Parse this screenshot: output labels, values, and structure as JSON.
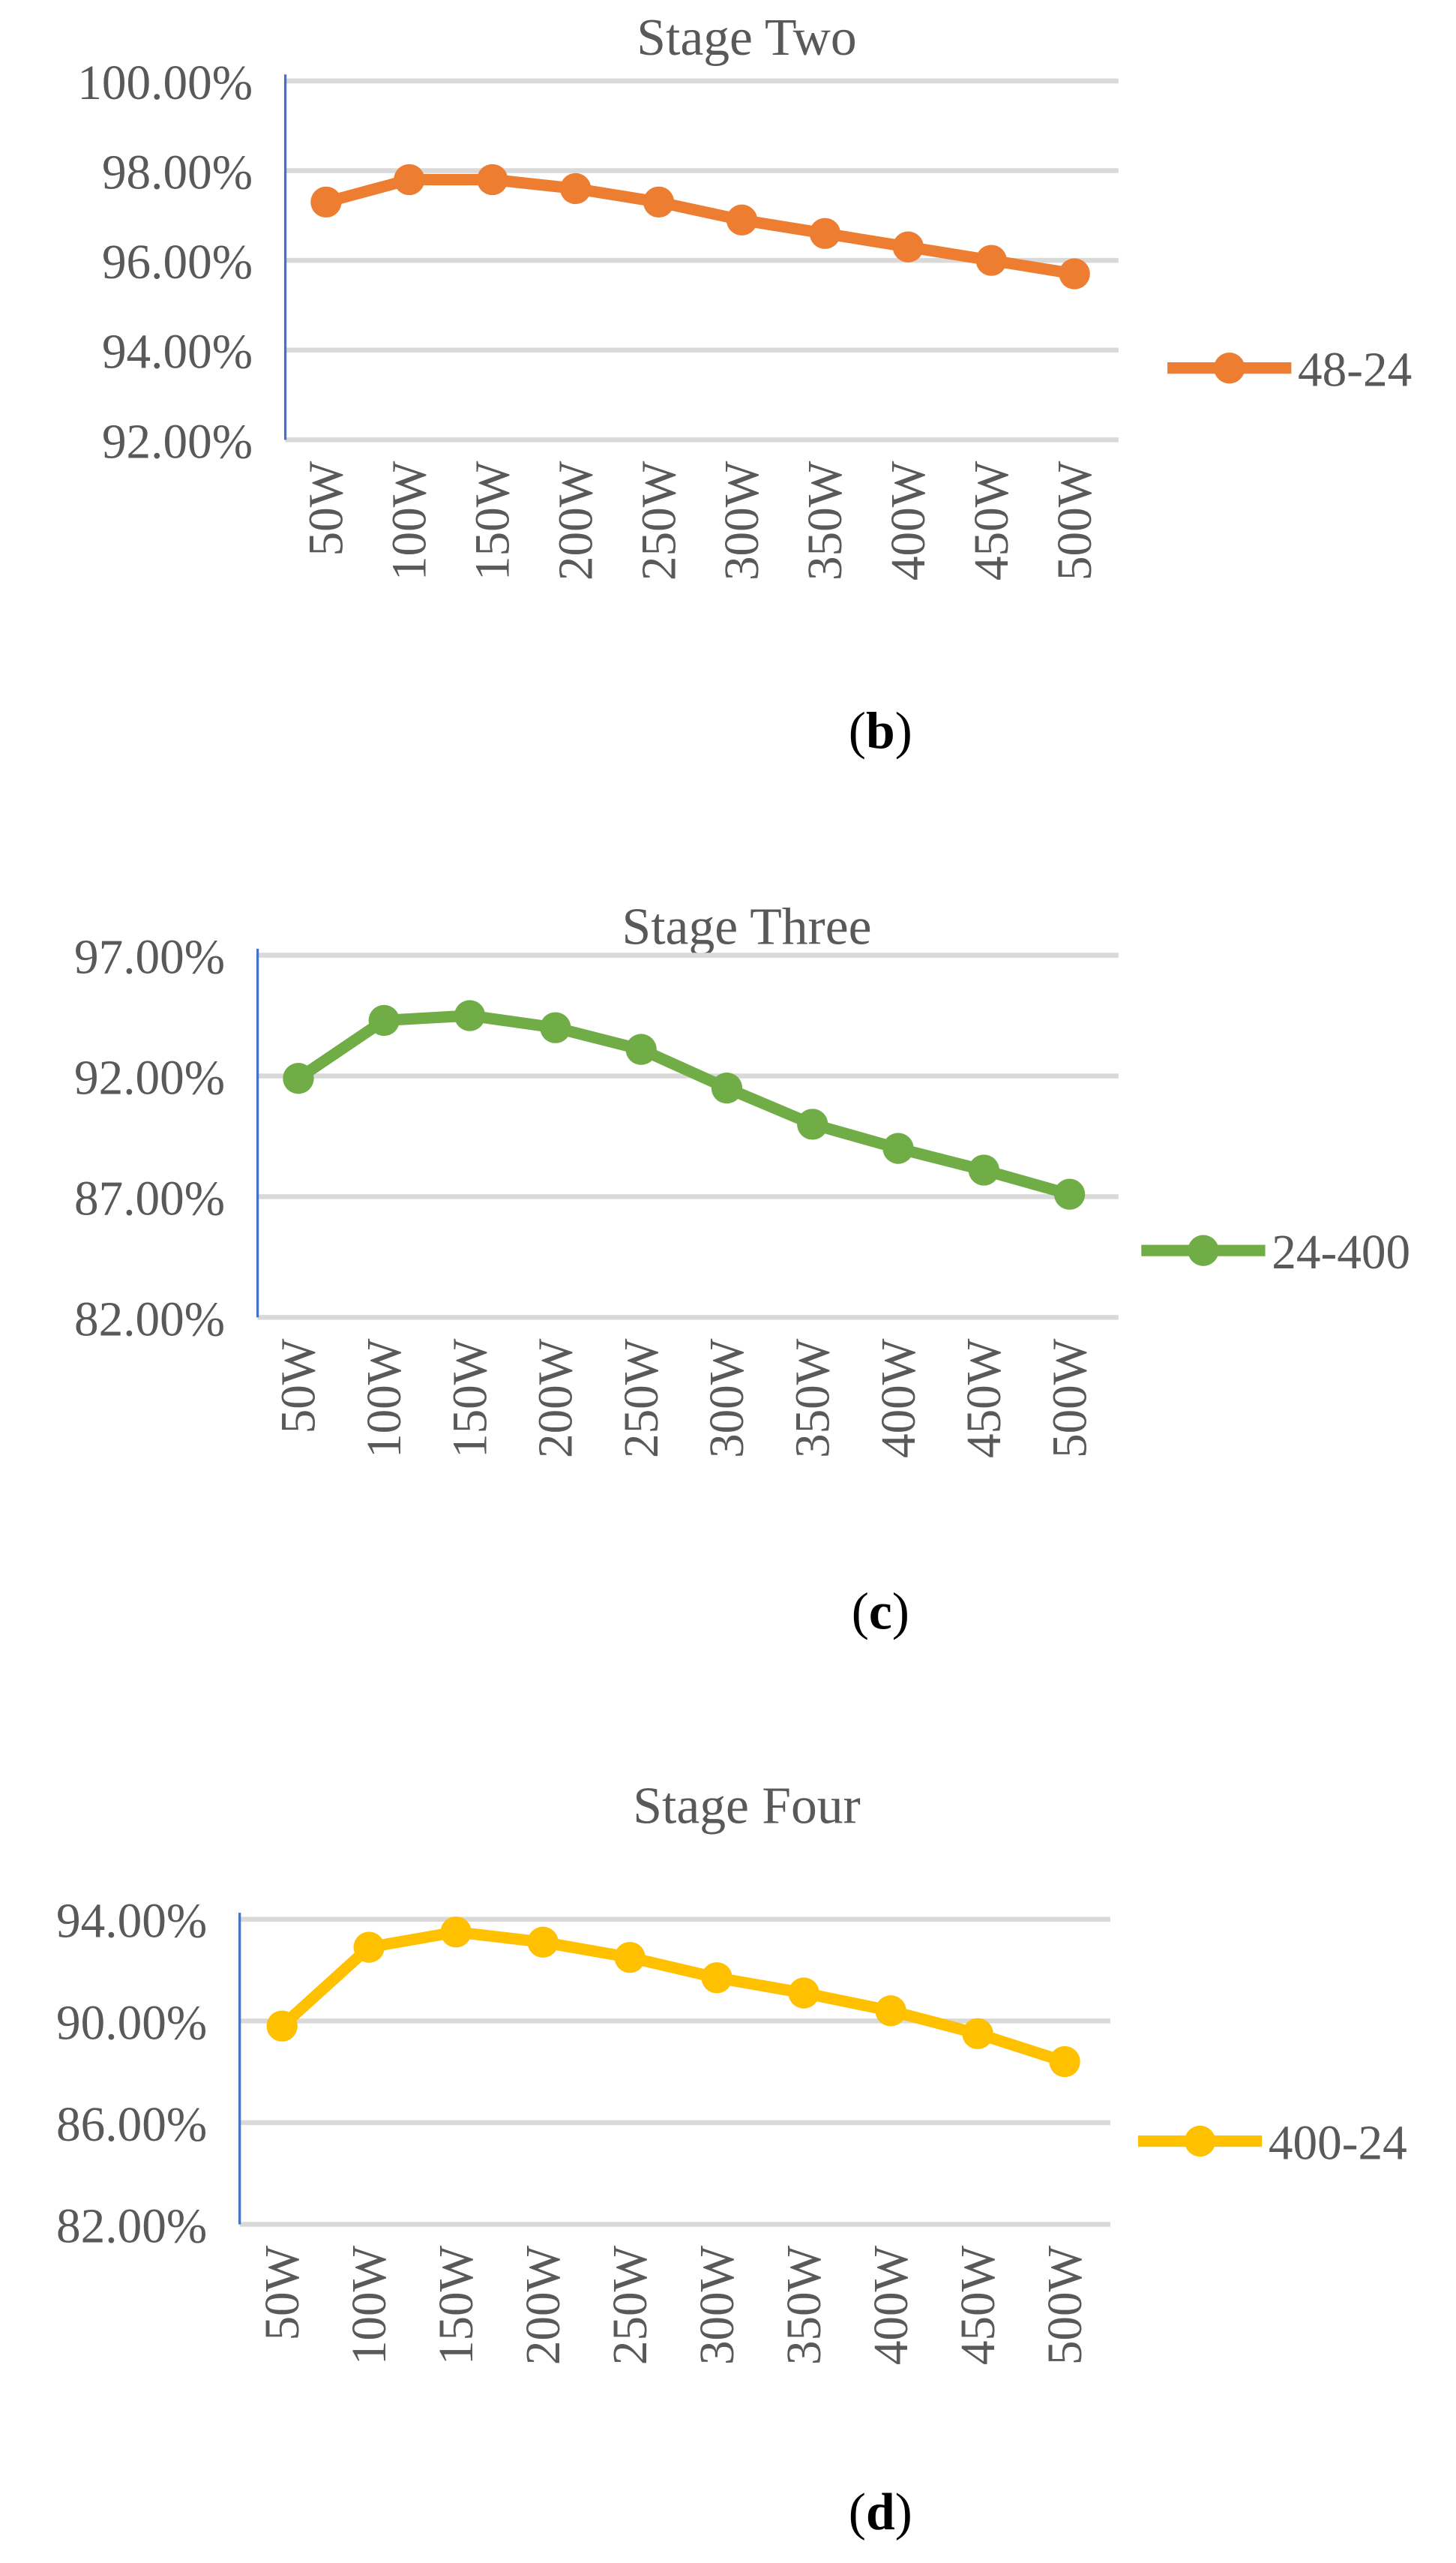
{
  "chart_data": [
    {
      "type": "line",
      "title": "Stage Two",
      "panel_label": "(b)",
      "categories": [
        "50W",
        "100W",
        "150W",
        "200W",
        "250W",
        "300W",
        "350W",
        "400W",
        "450W",
        "500W"
      ],
      "series": [
        {
          "name": "48-24",
          "color": "#ed7d31",
          "values": [
            97.3,
            97.8,
            97.8,
            97.6,
            97.3,
            96.9,
            96.6,
            96.3,
            96.0,
            95.7
          ]
        }
      ],
      "yticks": [
        "100.00%",
        "98.00%",
        "96.00%",
        "94.00%",
        "92.00%"
      ],
      "ylim": [
        92,
        100
      ],
      "xlabel": "",
      "ylabel": "",
      "grid": true,
      "legend_position": "right"
    },
    {
      "type": "line",
      "title": "Stage Three",
      "panel_label": "(c)",
      "categories": [
        "50W",
        "100W",
        "150W",
        "200W",
        "250W",
        "300W",
        "350W",
        "400W",
        "450W",
        "500W"
      ],
      "series": [
        {
          "name": "24-400",
          "color": "#70ad47",
          "values": [
            91.9,
            94.3,
            94.5,
            94.0,
            93.1,
            91.5,
            90.0,
            89.0,
            88.1,
            87.1
          ]
        }
      ],
      "yticks": [
        "97.00%",
        "92.00%",
        "87.00%",
        "82.00%"
      ],
      "ylim": [
        82,
        97
      ],
      "xlabel": "",
      "ylabel": "",
      "grid": true,
      "legend_position": "right"
    },
    {
      "type": "line",
      "title": "Stage Four",
      "panel_label": "(d)",
      "categories": [
        "50W",
        "100W",
        "150W",
        "200W",
        "250W",
        "300W",
        "350W",
        "400W",
        "450W",
        "500W"
      ],
      "series": [
        {
          "name": "400-24",
          "color": "#ffc000",
          "values": [
            89.8,
            92.9,
            93.5,
            93.1,
            92.5,
            91.7,
            91.1,
            90.4,
            89.5,
            88.4
          ]
        }
      ],
      "yticks": [
        "94.00%",
        "90.00%",
        "86.00%",
        "82.00%"
      ],
      "ylim": [
        82,
        94
      ],
      "xlabel": "",
      "ylabel": "",
      "grid": true,
      "legend_position": "right"
    }
  ]
}
